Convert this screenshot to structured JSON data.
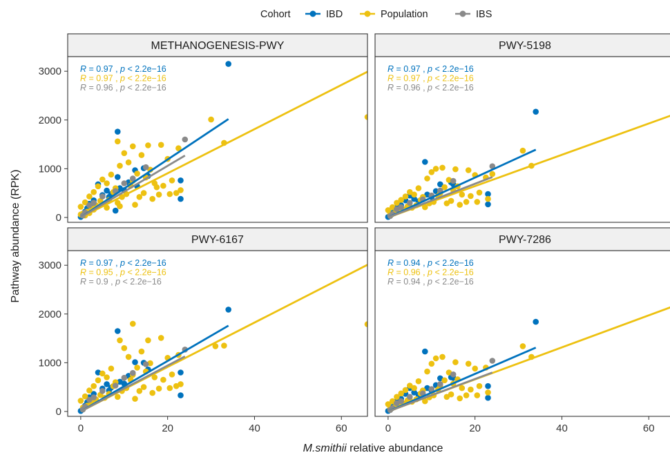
{
  "legend": {
    "title": "Cohort",
    "items": [
      {
        "label": "IBD",
        "color": "#0072BD"
      },
      {
        "label": "Population",
        "color": "#EDC111"
      },
      {
        "label": "IBS",
        "color": "#8A8A8A"
      }
    ]
  },
  "axes": {
    "xlabel_italic": "M.smithii",
    "xlabel_rest": " relative abundance",
    "ylabel": "Pathway abundance (RPK)"
  },
  "chart_data": {
    "type": "scatter",
    "xlabel": "M.smithii relative abundance",
    "ylabel": "Pathway abundance (RPK)",
    "xlim": [
      -3,
      66
    ],
    "ylim": [
      -100,
      3300
    ],
    "xticks": [
      0,
      20,
      40,
      60
    ],
    "yticks": [
      0,
      1000,
      2000,
      3000
    ],
    "grid": false,
    "legend_position": "top",
    "series_colors": {
      "IBD": "#0072BD",
      "Population": "#EDC111",
      "IBS": "#8A8A8A"
    },
    "panels": [
      {
        "title": "METHANOGENESIS-PWY",
        "stats": [
          {
            "cohort": "IBD",
            "R": "0.97",
            "p": "2.2e−16"
          },
          {
            "cohort": "Population",
            "R": "0.97",
            "p": "2.2e−16"
          },
          {
            "cohort": "IBS",
            "R": "0.96",
            "p": "2.2e−16"
          }
        ],
        "fits": [
          {
            "cohort": "Population",
            "x": [
              0,
              66
            ],
            "y": [
              0,
              2990
            ]
          },
          {
            "cohort": "IBD",
            "x": [
              0,
              34
            ],
            "y": [
              0,
              2020
            ]
          },
          {
            "cohort": "IBS",
            "x": [
              0,
              24
            ],
            "y": [
              0,
              1270
            ]
          }
        ],
        "points": [
          {
            "cohort": "IBD",
            "x": [
              34,
              8.5,
              12.5,
              23,
              23,
              8.5,
              14.5,
              4,
              6,
              5,
              9,
              2,
              11,
              3,
              7,
              1,
              0,
              0.5,
              1.5,
              10,
              15.5,
              2.5,
              6.5,
              13,
              8
            ],
            "y": [
              3150,
              1760,
              970,
              760,
              380,
              830,
              1010,
              680,
              550,
              460,
              600,
              280,
              720,
              350,
              480,
              120,
              10,
              60,
              190,
              560,
              850,
              230,
              420,
              640,
              140
            ]
          },
          {
            "cohort": "Population",
            "x": [
              66,
              33,
              30,
              8.5,
              12,
              15.5,
              18.5,
              22.5,
              20,
              14,
              16,
              10,
              9,
              11,
              13,
              7,
              5,
              6,
              4,
              3,
              2,
              1,
              0,
              8,
              12,
              15,
              17,
              19,
              21,
              23,
              10.5,
              9.5,
              6.5,
              5.5,
              3.5,
              2.5,
              1.5,
              0.5,
              14.5,
              11.5,
              13.5,
              7.5,
              16.5,
              18,
              20.5,
              4.5,
              8.5,
              12.5,
              9,
              6,
              3,
              0,
              1,
              2,
              22,
              17.5
            ],
            "y": [
              2060,
              1530,
              2010,
              1560,
              1460,
              1480,
              1490,
              1420,
              1200,
              1280,
              980,
              1320,
              1060,
              1130,
              900,
              880,
              780,
              700,
              640,
              520,
              430,
              310,
              220,
              600,
              750,
              820,
              700,
              650,
              760,
              560,
              480,
              420,
              360,
              280,
              250,
              180,
              120,
              80,
              500,
              650,
              420,
              520,
              380,
              470,
              480,
              340,
              300,
              260,
              230,
              200,
              160,
              60,
              40,
              90,
              500,
              620
            ]
          },
          {
            "cohort": "IBS",
            "x": [
              24,
              15,
              10,
              5,
              2,
              1,
              8,
              12,
              0.5,
              3
            ],
            "y": [
              1600,
              1030,
              700,
              430,
              250,
              100,
              540,
              800,
              40,
              300
            ]
          }
        ]
      },
      {
        "title": "PWY-5198",
        "stats": [
          {
            "cohort": "IBD",
            "R": "0.97",
            "p": "2.2e−16"
          },
          {
            "cohort": "Population",
            "R": "0.97",
            "p": "2.2e−16"
          },
          {
            "cohort": "IBS",
            "R": "0.96",
            "p": "2.2e−16"
          }
        ],
        "fits": [
          {
            "cohort": "Population",
            "x": [
              0,
              66
            ],
            "y": [
              0,
              2120
            ]
          },
          {
            "cohort": "IBD",
            "x": [
              0,
              34
            ],
            "y": [
              0,
              1390
            ]
          },
          {
            "cohort": "IBS",
            "x": [
              0,
              24
            ],
            "y": [
              0,
              830
            ]
          }
        ],
        "points": [
          {
            "cohort": "IBD",
            "x": [
              34,
              8.5,
              12,
              23,
              23,
              14.5,
              5,
              6,
              9,
              2,
              11,
              3,
              7,
              1,
              0,
              0.5,
              1.5,
              10,
              15,
              4
            ],
            "y": [
              2170,
              1140,
              680,
              480,
              270,
              720,
              450,
              380,
              470,
              200,
              540,
              250,
              330,
              90,
              10,
              40,
              140,
              420,
              680,
              350
            ]
          },
          {
            "cohort": "Population",
            "x": [
              66,
              33,
              31,
              11,
              12.5,
              15.5,
              18.5,
              22.5,
              20,
              14,
              16,
              10,
              9,
              13,
              7,
              5,
              6,
              4,
              3,
              2,
              1,
              0,
              8,
              12,
              15,
              17,
              19,
              21,
              23,
              10.5,
              9.5,
              6.5,
              5.5,
              3.5,
              2.5,
              1.5,
              0.5,
              14.5,
              11.5,
              13.5,
              7.5,
              16.5,
              18,
              20.5,
              24,
              4.5,
              8.5
            ],
            "y": [
              1640,
              1060,
              1370,
              1000,
              1020,
              990,
              970,
              820,
              870,
              770,
              640,
              930,
              800,
              620,
              600,
              520,
              470,
              430,
              360,
              300,
              210,
              150,
              420,
              500,
              560,
              470,
              440,
              510,
              380,
              320,
              290,
              250,
              200,
              170,
              130,
              90,
              60,
              340,
              440,
              290,
              360,
              260,
              320,
              320,
              890,
              230,
              210
            ]
          },
          {
            "cohort": "IBS",
            "x": [
              24,
              15,
              10,
              5,
              2,
              1,
              8,
              12,
              0.5,
              3
            ],
            "y": [
              1050,
              750,
              450,
              300,
              170,
              70,
              370,
              550,
              30,
              210
            ]
          }
        ]
      },
      {
        "title": "PWY-6167",
        "stats": [
          {
            "cohort": "IBD",
            "R": "0.97",
            "p": "2.2e−16"
          },
          {
            "cohort": "Population",
            "R": "0.95",
            "p": "2.2e−16"
          },
          {
            "cohort": "IBS",
            "R": "0.9",
            "p": "2.2e−16"
          }
        ],
        "fits": [
          {
            "cohort": "Population",
            "x": [
              0,
              66
            ],
            "y": [
              0,
              3010
            ]
          },
          {
            "cohort": "IBD",
            "x": [
              0,
              34
            ],
            "y": [
              0,
              1760
            ]
          },
          {
            "cohort": "IBS",
            "x": [
              0,
              24
            ],
            "y": [
              0,
              1130
            ]
          }
        ],
        "points": [
          {
            "cohort": "IBD",
            "x": [
              34,
              8.5,
              12.5,
              23,
              23,
              14.5,
              4,
              6,
              5,
              9,
              2,
              11,
              3,
              7,
              1,
              0,
              0.5,
              1.5,
              10,
              15.5,
              2.5,
              6.5
            ],
            "y": [
              2090,
              1650,
              1010,
              800,
              330,
              1000,
              800,
              560,
              470,
              610,
              290,
              730,
              360,
              490,
              120,
              10,
              60,
              190,
              570,
              860,
              230,
              430
            ]
          },
          {
            "cohort": "Population",
            "x": [
              66,
              33,
              31,
              12,
              9,
              15.5,
              18.5,
              22.5,
              20,
              14,
              16,
              10,
              11,
              13,
              7,
              5,
              6,
              4,
              3,
              2,
              1,
              0,
              8,
              12,
              15,
              17,
              19,
              21,
              23,
              10.5,
              9.5,
              6.5,
              5.5,
              3.5,
              2.5,
              1.5,
              0.5,
              14.5,
              11.5,
              13.5,
              7.5,
              16.5,
              18,
              20.5,
              4.5,
              8.5,
              12.5,
              22
            ],
            "y": [
              1790,
              1350,
              1340,
              1800,
              1460,
              1460,
              1510,
              1160,
              1100,
              1230,
              990,
              1300,
              1120,
              900,
              880,
              780,
              700,
              640,
              520,
              430,
              310,
              220,
              600,
              750,
              820,
              700,
              650,
              760,
              560,
              480,
              420,
              360,
              280,
              250,
              180,
              120,
              80,
              500,
              650,
              420,
              520,
              380,
              470,
              480,
              340,
              300,
              260,
              520
            ]
          },
          {
            "cohort": "IBS",
            "x": [
              24,
              15,
              10,
              5,
              2,
              1,
              8,
              12,
              0.5,
              3
            ],
            "y": [
              1270,
              970,
              690,
              420,
              240,
              100,
              530,
              790,
              40,
              290
            ]
          }
        ]
      },
      {
        "title": "PWY-7286",
        "stats": [
          {
            "cohort": "IBD",
            "R": "0.94",
            "p": "2.2e−16"
          },
          {
            "cohort": "Population",
            "R": "0.96",
            "p": "2.2e−16"
          },
          {
            "cohort": "IBS",
            "R": "0.94",
            "p": "2.2e−16"
          }
        ],
        "fits": [
          {
            "cohort": "Population",
            "x": [
              0,
              66
            ],
            "y": [
              0,
              2170
            ]
          },
          {
            "cohort": "IBD",
            "x": [
              0,
              34
            ],
            "y": [
              0,
              1310
            ]
          },
          {
            "cohort": "IBS",
            "x": [
              0,
              24
            ],
            "y": [
              0,
              800
            ]
          }
        ],
        "points": [
          {
            "cohort": "IBD",
            "x": [
              34,
              8.5,
              12,
              23,
              23,
              14.5,
              5,
              6,
              9,
              2,
              11,
              3,
              7,
              1,
              0,
              0.5,
              1.5,
              10,
              15,
              4
            ],
            "y": [
              1840,
              1230,
              680,
              520,
              280,
              700,
              480,
              390,
              480,
              210,
              540,
              260,
              340,
              90,
              10,
              40,
              150,
              430,
              690,
              360
            ]
          },
          {
            "cohort": "Population",
            "x": [
              66,
              33,
              31,
              11,
              12.5,
              15.5,
              18.5,
              22.5,
              20,
              14,
              16,
              10,
              9,
              13,
              7,
              5,
              6,
              4,
              3,
              2,
              1,
              0,
              8,
              12,
              15,
              17,
              19,
              21,
              23,
              10.5,
              9.5,
              6.5,
              5.5,
              3.5,
              2.5,
              1.5,
              0.5,
              14.5,
              11.5,
              13.5,
              7.5,
              16.5,
              18,
              20.5,
              4.5,
              8.5
            ],
            "y": [
              1430,
              1120,
              1340,
              1090,
              1120,
              1010,
              980,
              900,
              880,
              800,
              660,
              980,
              820,
              640,
              620,
              530,
              480,
              440,
              370,
              300,
              210,
              150,
              430,
              510,
              570,
              480,
              450,
              520,
              390,
              330,
              290,
              250,
              200,
              170,
              130,
              90,
              60,
              350,
              450,
              300,
              370,
              270,
              330,
              330,
              230,
              210
            ]
          },
          {
            "cohort": "IBS",
            "x": [
              24,
              15,
              10,
              5,
              2,
              1,
              8,
              12,
              0.5,
              3
            ],
            "y": [
              1040,
              760,
              460,
              300,
              170,
              70,
              370,
              560,
              30,
              210
            ]
          }
        ]
      }
    ]
  }
}
